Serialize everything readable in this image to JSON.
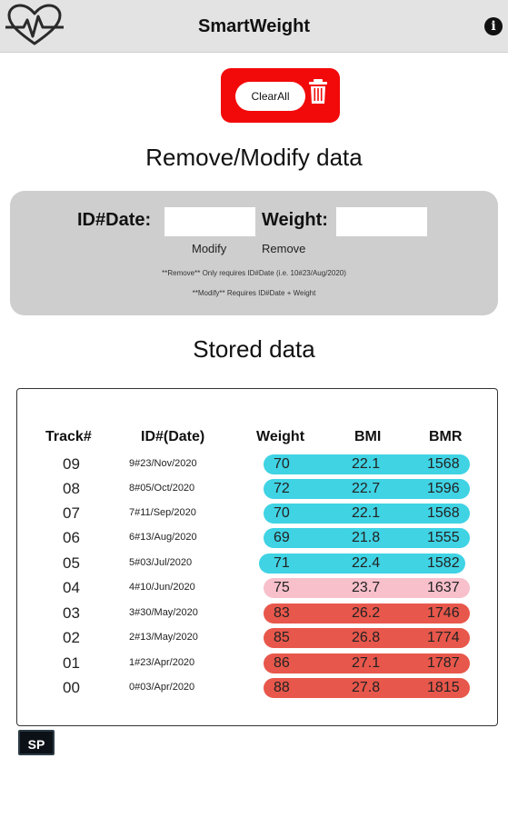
{
  "header": {
    "title": "SmartWeight",
    "logo_icon": "heart-pulse-icon",
    "info_icon_glyph": "i"
  },
  "clear": {
    "label": "ClearAll",
    "box_color": "#f20a0a"
  },
  "remove_section": {
    "title": "Remove/Modify data",
    "id_label": "ID#Date:",
    "id_value": "",
    "weight_label": "Weight:",
    "weight_value": "",
    "modify_label": "Modify",
    "remove_label": "Remove",
    "note_remove": "**Remove** Only requires ID#Date (i.e. 10#23/Aug/2020)",
    "note_modify": "**Modify** Requires ID#Date + Weight"
  },
  "stored": {
    "title": "Stored data",
    "columns": [
      "Track#",
      "ID#(Date)",
      "Weight",
      "BMI",
      "BMR"
    ],
    "rows": [
      {
        "track": "09",
        "id": "9#23/Nov/2020",
        "weight": "70",
        "bmi": "22.1",
        "bmr": "1568",
        "color": "#3fd3e4"
      },
      {
        "track": "08",
        "id": "8#05/Oct/2020",
        "weight": "72",
        "bmi": "22.7",
        "bmr": "1596",
        "color": "#3fd3e4"
      },
      {
        "track": "07",
        "id": "7#11/Sep/2020",
        "weight": "70",
        "bmi": "22.1",
        "bmr": "1568",
        "color": "#3fd3e4"
      },
      {
        "track": "06",
        "id": "6#13/Aug/2020",
        "weight": "69",
        "bmi": "21.8",
        "bmr": "1555",
        "color": "#3fd3e4"
      },
      {
        "track": "05",
        "id": "5#03/Jul/2020",
        "weight": "71",
        "bmi": "22.4",
        "bmr": "1582",
        "color": "#3fd3e4"
      },
      {
        "track": "04",
        "id": "4#10/Jun/2020",
        "weight": "75",
        "bmi": "23.7",
        "bmr": "1637",
        "color": "#f7c0cb"
      },
      {
        "track": "03",
        "id": "3#30/May/2020",
        "weight": "83",
        "bmi": "26.2",
        "bmr": "1746",
        "color": "#e8574b"
      },
      {
        "track": "02",
        "id": "2#13/May/2020",
        "weight": "85",
        "bmi": "26.8",
        "bmr": "1774",
        "color": "#e8574b"
      },
      {
        "track": "01",
        "id": "1#23/Apr/2020",
        "weight": "86",
        "bmi": "27.1",
        "bmr": "1787",
        "color": "#e8574b"
      },
      {
        "track": "00",
        "id": "0#03/Apr/2020",
        "weight": "88",
        "bmi": "27.8",
        "bmr": "1815",
        "color": "#e8574b"
      }
    ]
  },
  "badge": {
    "label": "SP"
  }
}
